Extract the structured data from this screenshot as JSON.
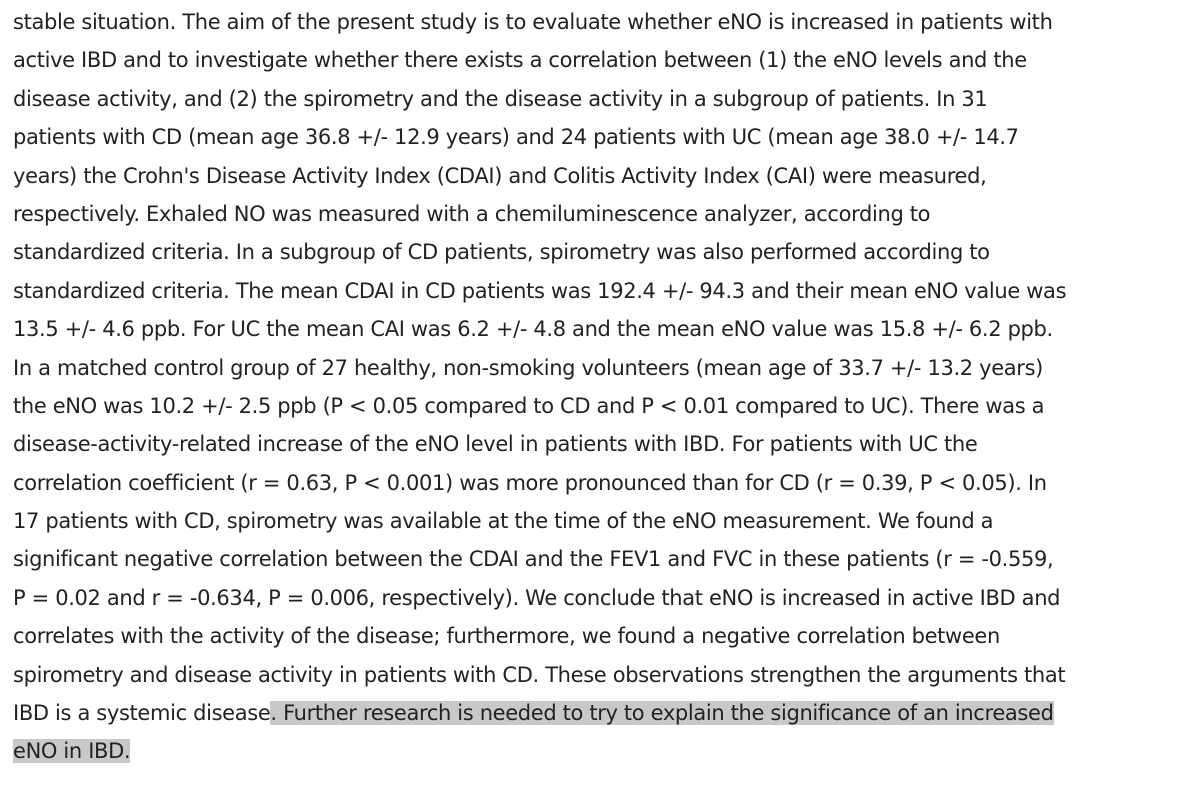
{
  "abstract": {
    "lines": [
      "stable situation. The aim of the present study is to evaluate whether eNO is increased in patients with",
      "active IBD and to investigate whether there exists a correlation between (1) the eNO levels and the",
      "disease activity, and (2) the spirometry and the disease activity in a subgroup of patients. In 31",
      "patients with CD (mean age 36.8 +/- 12.9 years) and 24 patients with UC (mean age 38.0 +/- 14.7",
      "years) the Crohn's Disease Activity Index (CDAI) and Colitis Activity Index (CAI) were measured,",
      "respectively. Exhaled NO was measured with a chemiluminescence analyzer, according to",
      "standardized criteria. In a subgroup of CD patients, spirometry was also performed according to",
      "standardized criteria. The mean CDAI in CD patients was 192.4 +/- 94.3 and their mean eNO value was",
      "13.5 +/- 4.6 ppb. For UC the mean CAI was 6.2 +/- 4.8 and the mean eNO value was 15.8 +/- 6.2 ppb.",
      "In a matched control group of 27 healthy, non-smoking volunteers (mean age of 33.7 +/- 13.2 years)",
      "the eNO was 10.2 +/- 2.5 ppb (P < 0.05 compared to CD and P < 0.01 compared to UC). There was a",
      "disease-activity-related increase of the eNO level in patients with IBD. For patients with UC the",
      "correlation coefficient (r = 0.63, P < 0.001) was more pronounced than for CD (r = 0.39, P < 0.05). In",
      "17 patients with CD, spirometry was available at the time of the eNO measurement. We found a",
      "significant negative correlation between the CDAI and the FEV1 and FVC in these patients (r = -0.559,",
      "P = 0.02 and r = -0.634, P = 0.006, respectively). We conclude that eNO is increased in active IBD and",
      "correlates with the activity of the disease; furthermore, we found a negative correlation between",
      "spirometry and disease activity in patients with CD. These observations strengthen the arguments that"
    ],
    "line_19_plain": "IBD is a systemic disease",
    "line_19_highlighted": ". Further research is needed to try to explain the significance of an increased ",
    "line_20_highlighted": "eNO in IBD."
  },
  "colors": {
    "text": "#222222",
    "selection_highlight": "#c8c8c8",
    "background": "#ffffff"
  }
}
